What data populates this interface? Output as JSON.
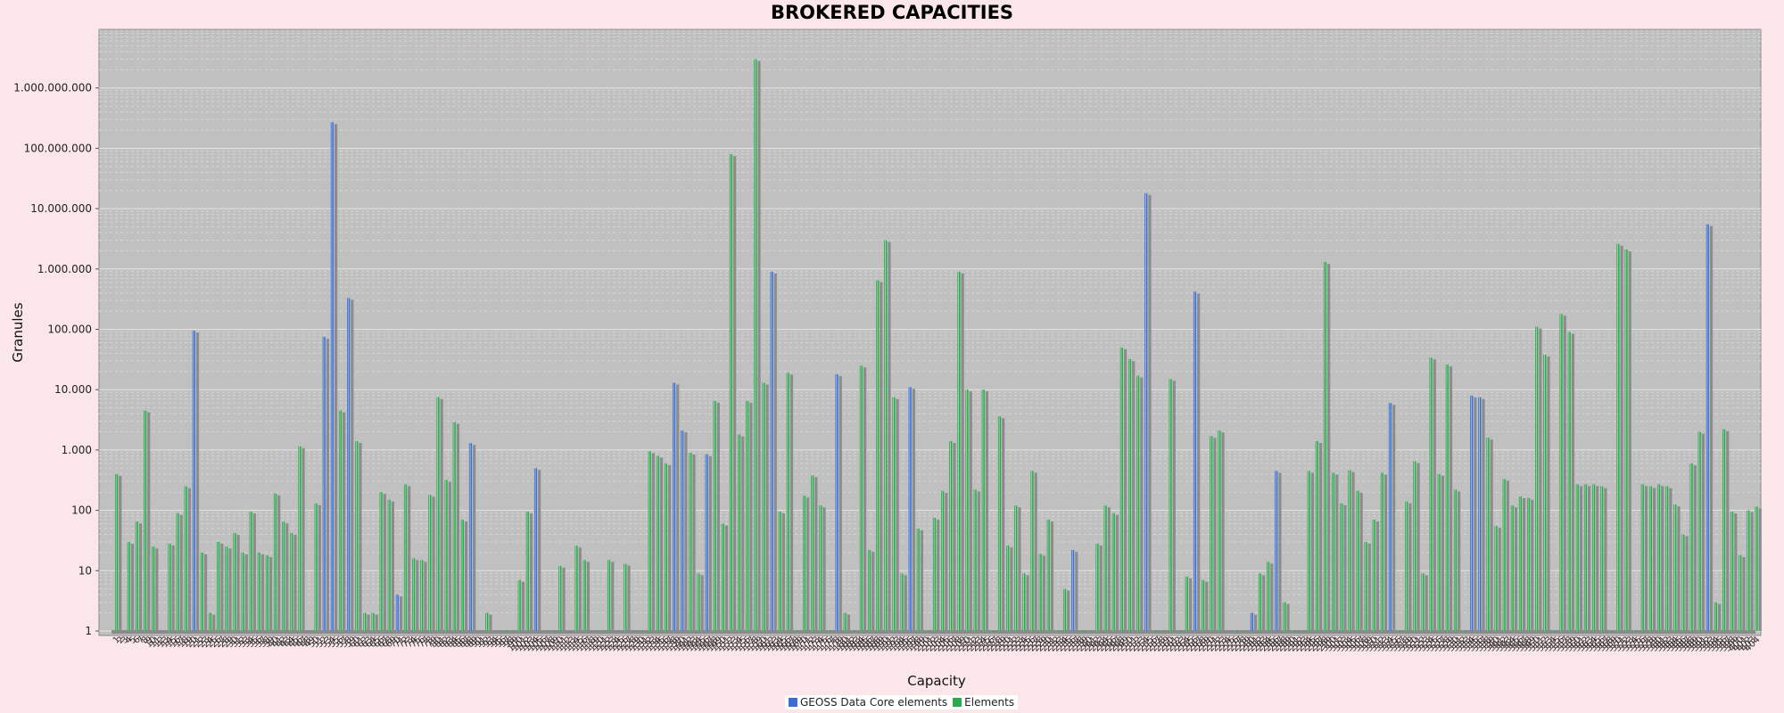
{
  "chart_data": {
    "type": "bar",
    "title": "BROKERED CAPACITIES",
    "xlabel": "Capacity",
    "ylabel": "Granules",
    "yscale": "log",
    "ylim": [
      1,
      10000000000
    ],
    "yticks": [
      "1",
      "10",
      "100",
      "1.000",
      "10.000",
      "100.000",
      "1.000.000",
      "10.000.000",
      "100.000.000",
      "1.000.000.000"
    ],
    "grid": true,
    "legend_position": "bottom",
    "colors": {
      "core": "#3a6fd0",
      "elements": "#2aaa4e",
      "background": "#c0c0c0",
      "page": "#fbe6ea"
    },
    "series": [
      {
        "name": "GEOSS Data Core elements"
      },
      {
        "name": "Elements"
      }
    ],
    "categories": [
      "1",
      "2",
      "3",
      "4",
      "5",
      "6",
      "7",
      "8",
      "9",
      "10",
      "11",
      "12",
      "13",
      "14",
      "15",
      "16",
      "17",
      "18",
      "19",
      "20",
      "21",
      "22",
      "23",
      "24",
      "25",
      "26",
      "27",
      "28",
      "29",
      "30",
      "31",
      "32",
      "33",
      "34",
      "35",
      "36",
      "37",
      "38",
      "39",
      "40",
      "41",
      "42",
      "43",
      "44",
      "45",
      "46",
      "47",
      "48",
      "49",
      "50",
      "51",
      "52",
      "53",
      "54",
      "55",
      "56",
      "57",
      "58",
      "59",
      "60",
      "61",
      "62",
      "63",
      "64",
      "65",
      "66",
      "67",
      "68",
      "69",
      "70",
      "71",
      "72",
      "73",
      "74",
      "75",
      "76",
      "77",
      "78",
      "79",
      "80",
      "81",
      "82",
      "83",
      "84",
      "85",
      "86",
      "87",
      "88",
      "89",
      "90",
      "91",
      "92",
      "93",
      "94",
      "95",
      "96",
      "97",
      "98",
      "99",
      "100",
      "101",
      "102",
      "103",
      "104",
      "105",
      "106",
      "107",
      "108",
      "109",
      "110",
      "111",
      "112",
      "113",
      "114",
      "115",
      "116",
      "117",
      "118",
      "119",
      "120",
      "121",
      "122",
      "123",
      "124",
      "125",
      "126",
      "127",
      "128",
      "129",
      "130",
      "131",
      "132",
      "133",
      "134",
      "135",
      "136",
      "137",
      "138",
      "139",
      "140",
      "141",
      "142",
      "143",
      "144",
      "145",
      "146",
      "147",
      "148",
      "149",
      "150",
      "151",
      "152",
      "153",
      "154",
      "155",
      "156",
      "157",
      "158",
      "159",
      "160",
      "161",
      "162",
      "163",
      "164",
      "165",
      "166",
      "167",
      "168",
      "169",
      "170",
      "171",
      "172",
      "173",
      "174",
      "175",
      "176",
      "177",
      "178",
      "179",
      "180",
      "181",
      "182",
      "183",
      "184",
      "185",
      "186",
      "187",
      "188",
      "189",
      "190",
      "191",
      "192",
      "193",
      "194",
      "195",
      "196",
      "197",
      "198",
      "199",
      "200",
      "201",
      "202",
      "203",
      "204",
      "205",
      "206",
      "207",
      "208",
      "209",
      "210",
      "211",
      "212",
      "213",
      "214",
      "215",
      "216",
      "217",
      "218",
      "219",
      "220",
      "221",
      "222",
      "223",
      "224",
      "225",
      "226",
      "227",
      "228",
      "229",
      "230",
      "231",
      "232",
      "233",
      "234",
      "235",
      "236",
      "237",
      "238",
      "239",
      "240",
      "241",
      "242",
      "243",
      "244",
      "245",
      "246",
      "247",
      "248",
      "249",
      "250",
      "251",
      "252",
      "253",
      "254",
      "255",
      "256",
      "257",
      "258",
      "259",
      "260",
      "261",
      "262",
      "263",
      "264",
      "265",
      "266",
      "267",
      "268",
      "269",
      "270",
      "271",
      "272",
      "273",
      "274",
      "275",
      "276",
      "277",
      "278",
      "279",
      "280",
      "281",
      "282",
      "283",
      "284",
      "285",
      "286",
      "287",
      "288",
      "289",
      "290",
      "291",
      "292",
      "293",
      "294",
      "295",
      "296",
      "297",
      "298",
      "299",
      "300",
      "301",
      "302",
      "303",
      "304",
      "305",
      "306",
      "307",
      "308",
      "309",
      "310",
      "311",
      "312",
      "313",
      "314",
      "315",
      "316",
      "317",
      "318",
      "319",
      "320",
      "321",
      "322",
      "323",
      "324",
      "325",
      "326",
      "327",
      "328",
      "329",
      "330",
      "331",
      "332",
      "333",
      "334",
      "335",
      "336",
      "337",
      "338",
      "339",
      "340",
      "341",
      "342",
      "343",
      "344",
      "345",
      "346",
      "347",
      "348",
      "349",
      "350",
      "351",
      "352",
      "353",
      "354",
      "355",
      "356",
      "357",
      "358",
      "359",
      "360",
      "361",
      "362",
      "363",
      "364",
      "365",
      "366",
      "367",
      "368",
      "369",
      "370",
      "371",
      "372",
      "373",
      "374",
      "375",
      "376",
      "377",
      "378",
      "379",
      "380",
      "381",
      "382",
      "383",
      "384",
      "385",
      "386",
      "387",
      "388",
      "389",
      "390",
      "391",
      "392",
      "393",
      "394",
      "395",
      "396",
      "397",
      "398",
      "399",
      "400",
      "401",
      "402",
      "403",
      "404"
    ],
    "bars": [
      [
        1,
        "elements",
        400
      ],
      [
        4,
        "elements",
        30
      ],
      [
        6,
        "elements",
        65
      ],
      [
        8,
        "elements",
        4500
      ],
      [
        10,
        "elements",
        25
      ],
      [
        14,
        "elements",
        28
      ],
      [
        16,
        "elements",
        90
      ],
      [
        18,
        "elements",
        250
      ],
      [
        20,
        "core",
        95000
      ],
      [
        22,
        "elements",
        20
      ],
      [
        24,
        "elements",
        2
      ],
      [
        26,
        "elements",
        30
      ],
      [
        28,
        "elements",
        25
      ],
      [
        30,
        "elements",
        42
      ],
      [
        32,
        "elements",
        20
      ],
      [
        34,
        "elements",
        95
      ],
      [
        36,
        "elements",
        20
      ],
      [
        38,
        "elements",
        18
      ],
      [
        40,
        "elements",
        190
      ],
      [
        42,
        "elements",
        65
      ],
      [
        44,
        "elements",
        42
      ],
      [
        46,
        "elements",
        1150
      ],
      [
        50,
        "elements",
        130
      ],
      [
        52,
        "core",
        75000
      ],
      [
        54,
        "core",
        270000000
      ],
      [
        56,
        "elements",
        4500
      ],
      [
        58,
        "core",
        330000
      ],
      [
        60,
        "elements",
        1400
      ],
      [
        62,
        "elements",
        2
      ],
      [
        64,
        "elements",
        2
      ],
      [
        66,
        "elements",
        200
      ],
      [
        68,
        "elements",
        150
      ],
      [
        70,
        "core",
        4
      ],
      [
        72,
        "elements",
        270
      ],
      [
        74,
        "elements",
        16
      ],
      [
        76,
        "elements",
        15
      ],
      [
        78,
        "elements",
        180
      ],
      [
        80,
        "elements",
        7500
      ],
      [
        82,
        "elements",
        320
      ],
      [
        84,
        "elements",
        2900
      ],
      [
        86,
        "elements",
        70
      ],
      [
        88,
        "core",
        1300
      ],
      [
        92,
        "elements",
        2
      ],
      [
        96,
        "elements",
        1
      ],
      [
        98,
        "elements",
        1
      ],
      [
        100,
        "elements",
        7
      ],
      [
        102,
        "elements",
        95
      ],
      [
        104,
        "core",
        500
      ],
      [
        108,
        "elements",
        1
      ],
      [
        110,
        "elements",
        12
      ],
      [
        114,
        "elements",
        26
      ],
      [
        116,
        "elements",
        15
      ],
      [
        120,
        "elements",
        1
      ],
      [
        122,
        "elements",
        15
      ],
      [
        126,
        "elements",
        13
      ],
      [
        130,
        "elements",
        1
      ],
      [
        132,
        "elements",
        950
      ],
      [
        134,
        "elements",
        800
      ],
      [
        136,
        "elements",
        600
      ],
      [
        138,
        "core",
        13000
      ],
      [
        140,
        "core",
        2100
      ],
      [
        142,
        "elements",
        900
      ],
      [
        144,
        "elements",
        9
      ],
      [
        146,
        "core",
        850
      ],
      [
        148,
        "elements",
        6500
      ],
      [
        150,
        "elements",
        60
      ],
      [
        152,
        "elements",
        80000000
      ],
      [
        154,
        "elements",
        1800
      ],
      [
        156,
        "elements",
        6500
      ],
      [
        158,
        "elements",
        3000000000
      ],
      [
        160,
        "elements",
        13000
      ],
      [
        162,
        "core",
        900000
      ],
      [
        164,
        "elements",
        95
      ],
      [
        166,
        "elements",
        19000
      ],
      [
        168,
        "elements",
        1
      ],
      [
        170,
        "elements",
        175
      ],
      [
        172,
        "elements",
        380
      ],
      [
        174,
        "elements",
        120
      ],
      [
        176,
        "elements",
        1
      ],
      [
        178,
        "core",
        18000
      ],
      [
        180,
        "elements",
        2
      ],
      [
        182,
        "elements",
        1
      ],
      [
        184,
        "elements",
        25000
      ],
      [
        186,
        "elements",
        22
      ],
      [
        188,
        "elements",
        650000
      ],
      [
        190,
        "elements",
        3000000
      ],
      [
        192,
        "elements",
        7500
      ],
      [
        194,
        "elements",
        9
      ],
      [
        196,
        "core",
        11000
      ],
      [
        198,
        "elements",
        50
      ],
      [
        200,
        "elements",
        1
      ],
      [
        202,
        "elements",
        75
      ],
      [
        204,
        "elements",
        210
      ],
      [
        206,
        "elements",
        1400
      ],
      [
        208,
        "elements",
        900000
      ],
      [
        210,
        "elements",
        10000
      ],
      [
        212,
        "elements",
        220
      ],
      [
        214,
        "elements",
        10000
      ],
      [
        216,
        "elements",
        1
      ],
      [
        218,
        "elements",
        3600
      ],
      [
        220,
        "elements",
        26
      ],
      [
        222,
        "elements",
        120
      ],
      [
        224,
        "elements",
        9
      ],
      [
        226,
        "elements",
        450
      ],
      [
        228,
        "elements",
        19
      ],
      [
        230,
        "elements",
        70
      ],
      [
        232,
        "elements",
        1
      ],
      [
        234,
        "elements",
        5
      ],
      [
        236,
        "core",
        22
      ],
      [
        238,
        "elements",
        1
      ],
      [
        240,
        "elements",
        1
      ],
      [
        242,
        "elements",
        28
      ],
      [
        244,
        "elements",
        120
      ],
      [
        246,
        "elements",
        90
      ],
      [
        248,
        "elements",
        50000
      ],
      [
        250,
        "elements",
        32000
      ],
      [
        252,
        "elements",
        17000
      ],
      [
        254,
        "core",
        18000000
      ],
      [
        256,
        "elements",
        1
      ],
      [
        258,
        "elements",
        1
      ],
      [
        260,
        "elements",
        15000
      ],
      [
        262,
        "elements",
        1
      ],
      [
        264,
        "elements",
        8
      ],
      [
        266,
        "core",
        420000
      ],
      [
        268,
        "elements",
        7
      ],
      [
        270,
        "elements",
        1700
      ],
      [
        272,
        "elements",
        2100
      ],
      [
        276,
        "elements",
        1
      ],
      [
        278,
        "elements",
        1
      ],
      [
        280,
        "core",
        2
      ],
      [
        282,
        "elements",
        9
      ],
      [
        284,
        "elements",
        14
      ],
      [
        286,
        "core",
        450
      ],
      [
        288,
        "elements",
        3
      ],
      [
        290,
        "elements",
        1
      ],
      [
        292,
        "elements",
        1
      ],
      [
        294,
        "elements",
        450
      ],
      [
        296,
        "elements",
        1400
      ],
      [
        298,
        "elements",
        1300000
      ],
      [
        300,
        "elements",
        420
      ],
      [
        302,
        "elements",
        130
      ],
      [
        304,
        "elements",
        460
      ],
      [
        306,
        "elements",
        210
      ],
      [
        308,
        "elements",
        30
      ],
      [
        310,
        "elements",
        70
      ],
      [
        312,
        "elements",
        420
      ],
      [
        314,
        "core",
        6000
      ],
      [
        316,
        "elements",
        1
      ],
      [
        318,
        "elements",
        140
      ],
      [
        320,
        "elements",
        650
      ],
      [
        322,
        "elements",
        9
      ],
      [
        324,
        "elements",
        34000
      ],
      [
        326,
        "elements",
        400
      ],
      [
        328,
        "elements",
        26000
      ],
      [
        330,
        "elements",
        220
      ],
      [
        332,
        "elements",
        1
      ],
      [
        334,
        "core",
        8000
      ],
      [
        336,
        "core",
        7500
      ],
      [
        338,
        "elements",
        1600
      ],
      [
        340,
        "elements",
        55
      ],
      [
        342,
        "elements",
        330
      ],
      [
        344,
        "elements",
        120
      ],
      [
        346,
        "elements",
        170
      ],
      [
        348,
        "elements",
        160
      ],
      [
        350,
        "elements",
        110000
      ],
      [
        352,
        "elements",
        38000
      ],
      [
        354,
        "elements",
        1
      ],
      [
        356,
        "elements",
        180000
      ],
      [
        358,
        "elements",
        90000
      ],
      [
        360,
        "elements",
        270
      ],
      [
        362,
        "elements",
        270
      ],
      [
        364,
        "elements",
        270
      ],
      [
        366,
        "elements",
        250
      ],
      [
        368,
        "elements",
        1
      ],
      [
        370,
        "elements",
        2600000
      ],
      [
        372,
        "elements",
        2100000
      ],
      [
        374,
        "elements",
        1
      ],
      [
        376,
        "elements",
        270
      ],
      [
        378,
        "elements",
        250
      ],
      [
        380,
        "elements",
        270
      ],
      [
        382,
        "elements",
        250
      ],
      [
        384,
        "elements",
        125
      ],
      [
        386,
        "elements",
        40
      ],
      [
        388,
        "elements",
        600
      ],
      [
        390,
        "elements",
        2000
      ],
      [
        392,
        "core",
        5500000
      ],
      [
        394,
        "elements",
        3
      ],
      [
        396,
        "elements",
        2200
      ],
      [
        398,
        "elements",
        95
      ],
      [
        400,
        "elements",
        18
      ],
      [
        402,
        "elements",
        100
      ],
      [
        404,
        "elements",
        115
      ]
    ]
  }
}
